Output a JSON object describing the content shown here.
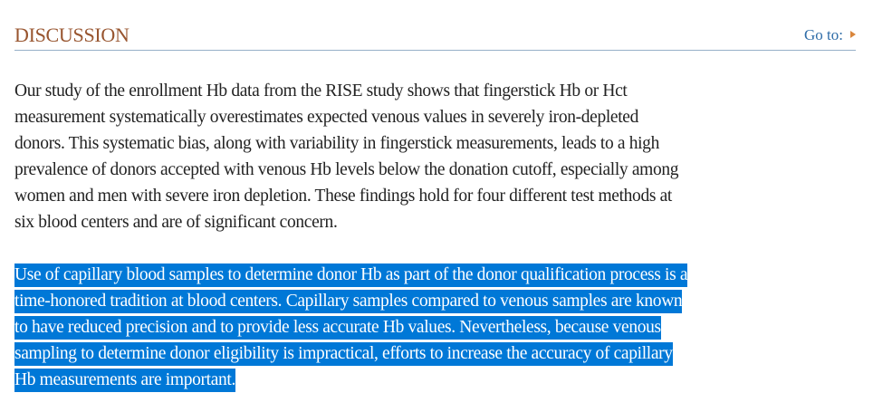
{
  "section": {
    "title": "DISCUSSION",
    "goto_label": "Go to:"
  },
  "paragraphs": [
    {
      "lines": [
        "Our study of the enrollment Hb data from the RISE study shows that fingerstick Hb or Hct",
        "measurement systematically overestimates expected venous values in severely iron-depleted",
        "donors. This systematic bias, along with variability in fingerstick measurements, leads to a high",
        "prevalence of donors accepted with venous Hb levels below the donation cutoff, especially among",
        "women and men with severe iron depletion. These findings hold for four different test methods at",
        "six blood centers and are of significant concern."
      ]
    },
    {
      "selected": true,
      "lines": [
        "Use of capillary blood samples to determine donor Hb as part of the donor qualification process is a",
        "time-honored tradition at blood centers. Capillary samples compared to venous samples are known",
        "to have reduced precision and to provide less accurate Hb values. Nevertheless, because venous",
        "sampling to determine donor eligibility is impractical, efforts to increase the accuracy of capillary",
        "Hb measurements are important."
      ]
    }
  ],
  "colors": {
    "title": "#98552f",
    "link": "#2f6da8",
    "selection": "#0078d7",
    "rule": "#97b0c8"
  }
}
